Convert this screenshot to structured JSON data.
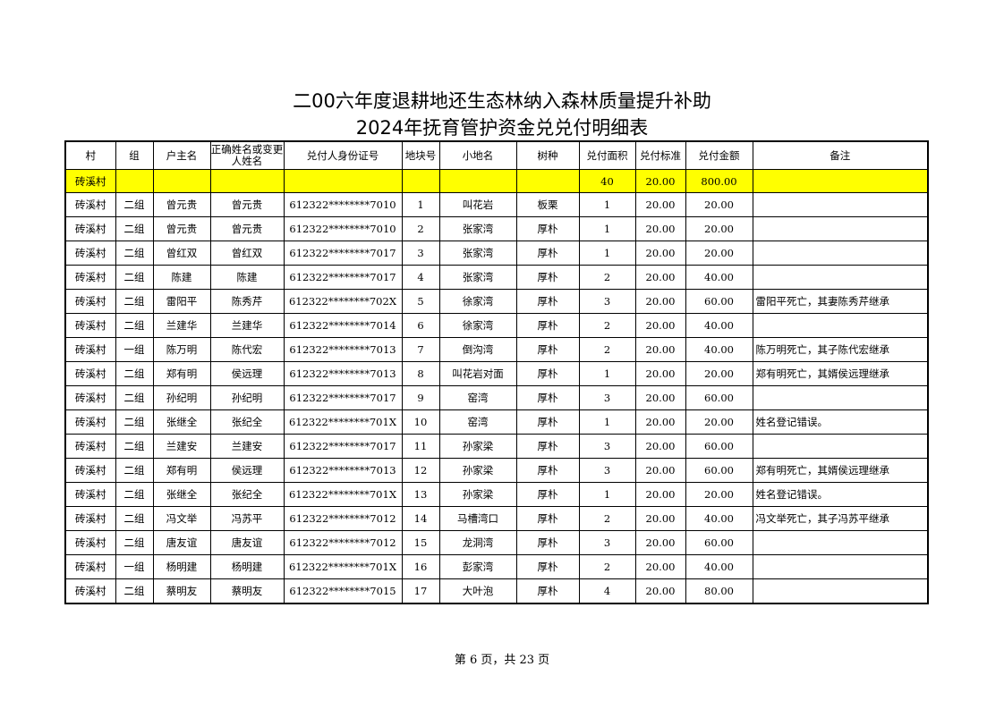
{
  "title_line1": "二00六年度退耕地还生态林纳入森林质量提升补助",
  "title_line2": "2024年抚育管护资金兑兑付明细表",
  "columns": [
    "村",
    "组",
    "户主名",
    "正确姓名或变更人姓名",
    "兑付人身份证号",
    "地块号",
    "小地名",
    "树种",
    "兑付面积",
    "兑付标准",
    "兑付金额",
    "备注"
  ],
  "total_row": [
    "砖溪村",
    "",
    "",
    "",
    "",
    "",
    "",
    "",
    "40",
    "20.00",
    "800.00",
    ""
  ],
  "rows": [
    [
      "砖溪村",
      "二组",
      "曾元贵",
      "曾元贵",
      "612322********7010",
      "1",
      "叫花岩",
      "板栗",
      "1",
      "20.00",
      "20.00",
      ""
    ],
    [
      "砖溪村",
      "二组",
      "曾元贵",
      "曾元贵",
      "612322********7010",
      "2",
      "张家湾",
      "厚朴",
      "1",
      "20.00",
      "20.00",
      ""
    ],
    [
      "砖溪村",
      "二组",
      "曾红双",
      "曾红双",
      "612322********7017",
      "3",
      "张家湾",
      "厚朴",
      "1",
      "20.00",
      "20.00",
      ""
    ],
    [
      "砖溪村",
      "二组",
      "陈建",
      "陈建",
      "612322********7017",
      "4",
      "张家湾",
      "厚朴",
      "2",
      "20.00",
      "40.00",
      ""
    ],
    [
      "砖溪村",
      "二组",
      "雷阳平",
      "陈秀芹",
      "612322********702X",
      "5",
      "徐家湾",
      "厚朴",
      "3",
      "20.00",
      "60.00",
      "雷阳平死亡，其妻陈秀芹继承"
    ],
    [
      "砖溪村",
      "二组",
      "兰建华",
      "兰建华",
      "612322********7014",
      "6",
      "徐家湾",
      "厚朴",
      "2",
      "20.00",
      "40.00",
      ""
    ],
    [
      "砖溪村",
      "一组",
      "陈万明",
      "陈代宏",
      "612322********7013",
      "7",
      "倒沟湾",
      "厚朴",
      "2",
      "20.00",
      "40.00",
      "陈万明死亡，其子陈代宏继承"
    ],
    [
      "砖溪村",
      "二组",
      "郑有明",
      "侯远理",
      "612322********7013",
      "8",
      "叫花岩对面",
      "厚朴",
      "1",
      "20.00",
      "20.00",
      "郑有明死亡，其婿侯远理继承"
    ],
    [
      "砖溪村",
      "二组",
      "孙纪明",
      "孙纪明",
      "612322********7017",
      "9",
      "窑湾",
      "厚朴",
      "3",
      "20.00",
      "60.00",
      ""
    ],
    [
      "砖溪村",
      "二组",
      "张继全",
      "张纪全",
      "612322********701X",
      "10",
      "窑湾",
      "厚朴",
      "1",
      "20.00",
      "20.00",
      "姓名登记错误。"
    ],
    [
      "砖溪村",
      "二组",
      "兰建安",
      "兰建安",
      "612322********7017",
      "11",
      "孙家梁",
      "厚朴",
      "3",
      "20.00",
      "60.00",
      ""
    ],
    [
      "砖溪村",
      "二组",
      "郑有明",
      "侯远理",
      "612322********7013",
      "12",
      "孙家梁",
      "厚朴",
      "3",
      "20.00",
      "60.00",
      "郑有明死亡，其婿侯远理继承"
    ],
    [
      "砖溪村",
      "二组",
      "张继全",
      "张纪全",
      "612322********701X",
      "13",
      "孙家梁",
      "厚朴",
      "1",
      "20.00",
      "20.00",
      "姓名登记错误。"
    ],
    [
      "砖溪村",
      "二组",
      "冯文举",
      "冯苏平",
      "612322********7012",
      "14",
      "马槽湾口",
      "厚朴",
      "2",
      "20.00",
      "40.00",
      "冯文举死亡，其子冯苏平继承"
    ],
    [
      "砖溪村",
      "二组",
      "唐友谊",
      "唐友谊",
      "612322********7012",
      "15",
      "龙洞湾",
      "厚朴",
      "3",
      "20.00",
      "60.00",
      ""
    ],
    [
      "砖溪村",
      "一组",
      "杨明建",
      "杨明建",
      "612322********701X",
      "16",
      "彭家湾",
      "厚朴",
      "2",
      "20.00",
      "40.00",
      ""
    ],
    [
      "砖溪村",
      "二组",
      "蔡明友",
      "蔡明友",
      "612322********7015",
      "17",
      "大叶泡",
      "厚朴",
      "4",
      "20.00",
      "80.00",
      ""
    ]
  ],
  "footer": "第 6 页，共 23 页",
  "colors": {
    "total_row_bg": "#ffff00"
  }
}
